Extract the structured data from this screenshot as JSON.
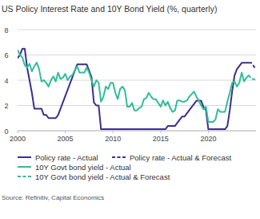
{
  "chart_data": {
    "type": "line",
    "title": "US Policy Interest Rate and 10Y Bond Yield (%, quarterly)",
    "source": "Source: Refinitiv, Capital Economics",
    "x": [
      2000,
      2000.25,
      2000.5,
      2000.75,
      2001,
      2001.25,
      2001.5,
      2001.75,
      2002,
      2002.25,
      2002.5,
      2002.75,
      2003,
      2003.25,
      2003.5,
      2003.75,
      2004,
      2004.25,
      2004.5,
      2004.75,
      2005,
      2005.25,
      2005.5,
      2005.75,
      2006,
      2006.25,
      2006.5,
      2006.75,
      2007,
      2007.25,
      2007.5,
      2007.75,
      2008,
      2008.25,
      2008.5,
      2008.75,
      2009,
      2009.25,
      2009.5,
      2009.75,
      2010,
      2010.25,
      2010.5,
      2010.75,
      2011,
      2011.25,
      2011.5,
      2011.75,
      2012,
      2012.25,
      2012.5,
      2012.75,
      2013,
      2013.25,
      2013.5,
      2013.75,
      2014,
      2014.25,
      2014.5,
      2014.75,
      2015,
      2015.25,
      2015.5,
      2015.75,
      2016,
      2016.25,
      2016.5,
      2016.75,
      2017,
      2017.25,
      2017.5,
      2017.75,
      2018,
      2018.25,
      2018.5,
      2018.75,
      2019,
      2019.25,
      2019.5,
      2019.75,
      2020,
      2020.25,
      2020.5,
      2020.75,
      2021,
      2021.25,
      2021.5,
      2021.75,
      2022,
      2022.25,
      2022.5,
      2022.75,
      2023,
      2023.25,
      2023.5,
      2023.75,
      2024,
      2024.25,
      2024.5,
      2024.75,
      2025
    ],
    "xlim": [
      2000,
      2025
    ],
    "xticks": [
      2000,
      2005,
      2010,
      2015,
      2020
    ],
    "ylim": [
      0,
      8
    ],
    "yticks": [
      0,
      2,
      4,
      6,
      8
    ],
    "grid": true,
    "legend": "bottom",
    "series": [
      {
        "name": "Policy rate - Actual",
        "color": "#3c2f8f",
        "line_style": "solid",
        "values": [
          5.75,
          6.0,
          6.5,
          6.5,
          5.0,
          4.0,
          3.0,
          1.75,
          1.75,
          1.75,
          1.75,
          1.25,
          1.25,
          1.0,
          1.0,
          1.0,
          1.0,
          1.25,
          1.75,
          2.25,
          2.75,
          3.25,
          3.75,
          4.25,
          4.75,
          5.25,
          5.25,
          5.25,
          5.25,
          5.25,
          4.75,
          4.25,
          2.25,
          2.0,
          2.0,
          0.125,
          0.125,
          0.125,
          0.125,
          0.125,
          0.125,
          0.125,
          0.125,
          0.125,
          0.125,
          0.125,
          0.125,
          0.125,
          0.125,
          0.125,
          0.125,
          0.125,
          0.125,
          0.125,
          0.125,
          0.125,
          0.125,
          0.125,
          0.125,
          0.125,
          0.125,
          0.125,
          0.125,
          0.375,
          0.375,
          0.375,
          0.375,
          0.625,
          0.875,
          1.125,
          1.125,
          1.375,
          1.625,
          1.875,
          2.125,
          2.375,
          2.375,
          2.375,
          1.875,
          1.625,
          0.125,
          0.125,
          0.125,
          0.125,
          0.125,
          0.125,
          0.125,
          0.125,
          0.375,
          1.625,
          3.125,
          4.375,
          4.875,
          5.125,
          5.375,
          5.375,
          5.375,
          5.375,
          null,
          null,
          null
        ]
      },
      {
        "name": "Policy rate - Actual & Forecast",
        "color": "#3c2f8f",
        "line_style": "dashed",
        "values": [
          null,
          null,
          null,
          null,
          null,
          null,
          null,
          null,
          null,
          null,
          null,
          null,
          null,
          null,
          null,
          null,
          null,
          null,
          null,
          null,
          null,
          null,
          null,
          null,
          null,
          null,
          null,
          null,
          null,
          null,
          null,
          null,
          null,
          null,
          null,
          null,
          null,
          null,
          null,
          null,
          null,
          null,
          null,
          null,
          null,
          null,
          null,
          null,
          null,
          null,
          null,
          null,
          null,
          null,
          null,
          null,
          null,
          null,
          null,
          null,
          null,
          null,
          null,
          null,
          null,
          null,
          null,
          null,
          null,
          null,
          null,
          null,
          null,
          null,
          null,
          null,
          null,
          null,
          null,
          null,
          null,
          null,
          null,
          null,
          null,
          null,
          null,
          null,
          null,
          null,
          null,
          null,
          null,
          null,
          null,
          null,
          null,
          5.375,
          5.375,
          5.125,
          4.875
        ]
      },
      {
        "name": "10Y Govt bond yield - Actual",
        "color": "#2fbf97",
        "line_style": "solid",
        "values": [
          6.4,
          6.0,
          5.8,
          5.2,
          5.0,
          5.3,
          4.7,
          5.1,
          5.4,
          4.9,
          3.9,
          4.0,
          3.8,
          3.5,
          4.0,
          4.3,
          3.9,
          4.6,
          4.1,
          4.2,
          4.5,
          4.0,
          4.3,
          4.4,
          4.8,
          5.1,
          4.6,
          4.6,
          4.6,
          5.0,
          4.6,
          4.0,
          3.5,
          4.0,
          3.8,
          2.3,
          2.7,
          3.5,
          3.3,
          3.8,
          3.8,
          3.0,
          2.5,
          3.3,
          3.5,
          3.2,
          1.9,
          1.9,
          2.2,
          1.6,
          1.6,
          1.8,
          1.9,
          2.5,
          2.6,
          3.0,
          2.7,
          2.5,
          2.5,
          2.2,
          1.9,
          2.4,
          2.0,
          2.3,
          1.8,
          1.5,
          1.6,
          2.4,
          2.4,
          2.3,
          2.3,
          2.4,
          2.7,
          2.9,
          3.1,
          2.7,
          2.4,
          2.0,
          1.7,
          1.9,
          0.7,
          0.7,
          0.7,
          0.9,
          1.7,
          1.5,
          1.5,
          1.5,
          2.3,
          3.0,
          3.8,
          3.9,
          3.5,
          3.8,
          4.6,
          3.9,
          4.2,
          4.4,
          null,
          null,
          null
        ]
      },
      {
        "name": "10Y Govt bond yield - Actual & Forecast",
        "color": "#2fbf97",
        "line_style": "dashed",
        "values": [
          null,
          null,
          null,
          null,
          null,
          null,
          null,
          null,
          null,
          null,
          null,
          null,
          null,
          null,
          null,
          null,
          null,
          null,
          null,
          null,
          null,
          null,
          null,
          null,
          null,
          null,
          null,
          null,
          null,
          null,
          null,
          null,
          null,
          null,
          null,
          null,
          null,
          null,
          null,
          null,
          null,
          null,
          null,
          null,
          null,
          null,
          null,
          null,
          null,
          null,
          null,
          null,
          null,
          null,
          null,
          null,
          null,
          null,
          null,
          null,
          null,
          null,
          null,
          null,
          null,
          null,
          null,
          null,
          null,
          null,
          null,
          null,
          null,
          null,
          null,
          null,
          null,
          null,
          null,
          null,
          null,
          null,
          null,
          null,
          null,
          null,
          null,
          null,
          null,
          null,
          null,
          null,
          null,
          null,
          null,
          null,
          null,
          4.4,
          4.1,
          4.1,
          4.0
        ]
      }
    ]
  }
}
